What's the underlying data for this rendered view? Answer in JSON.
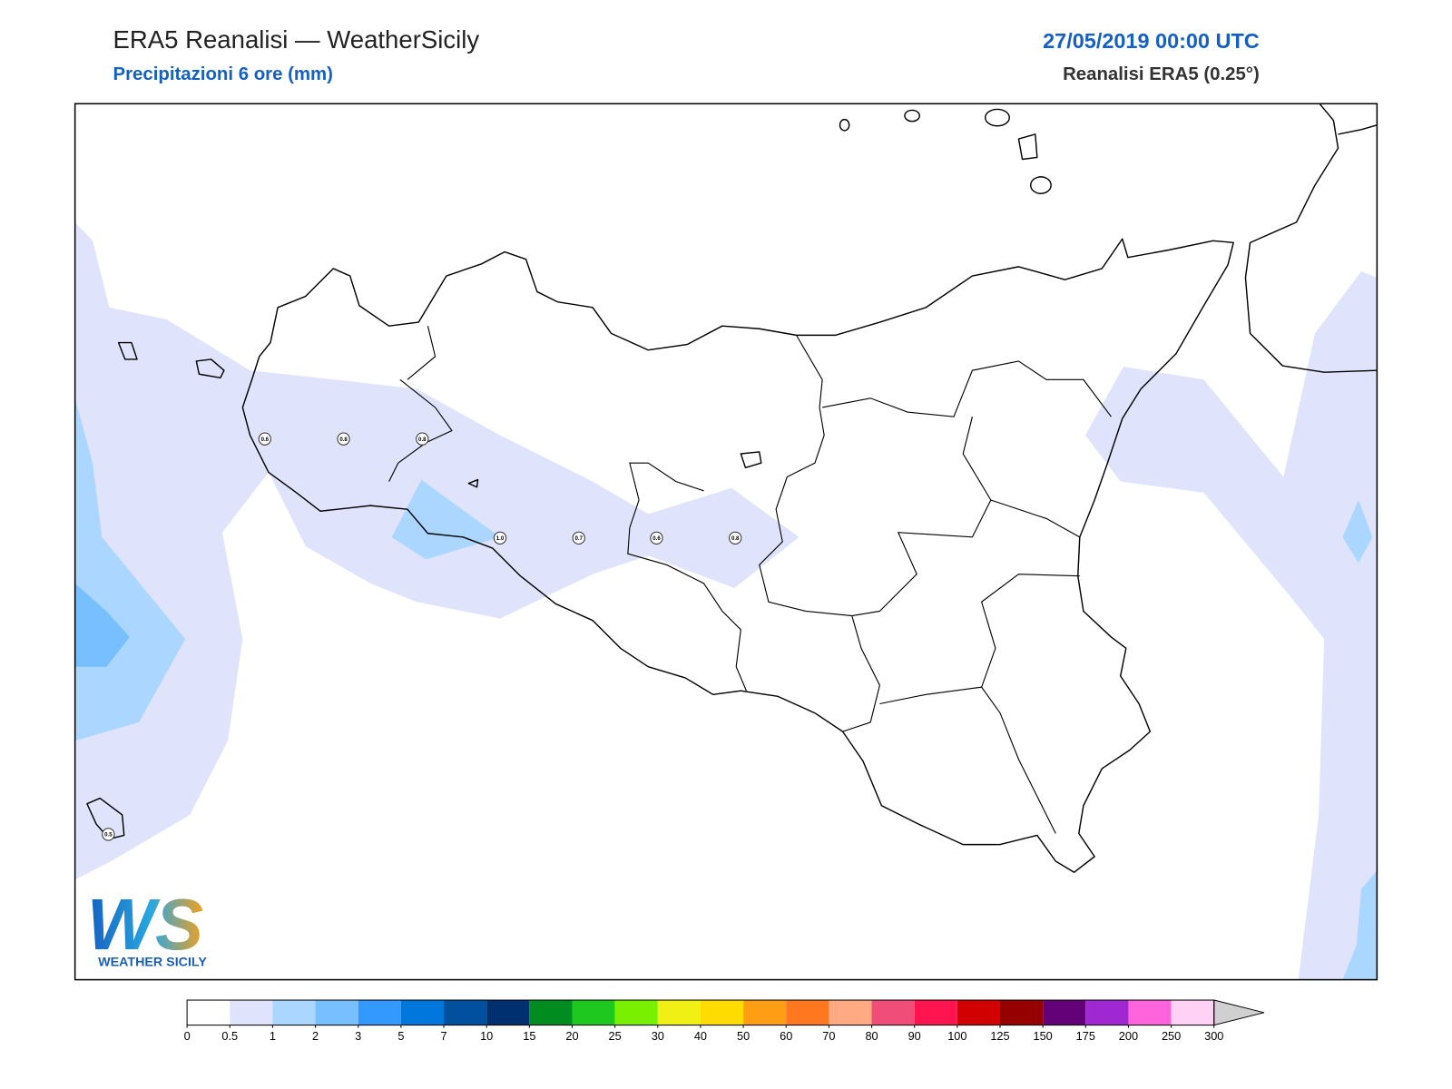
{
  "header": {
    "title": "ERA5 Reanalisi — WeatherSicily",
    "subtitle": "Precipitazioni 6 ore (mm)",
    "datetime": "27/05/2019 00:00 UTC",
    "model": "Reanalisi ERA5 (0.25°)"
  },
  "map": {
    "points": [
      0.6,
      0.8,
      0.8,
      {
        "value": 1,
        "label": "1.0"
      },
      0.7,
      0.6,
      0.8,
      0.5
    ]
  },
  "logo": {
    "mark": "WS",
    "text": "WEATHER SICILY"
  },
  "colorbar": {
    "levels": [
      0,
      0.5,
      1,
      2,
      3,
      5,
      7,
      10,
      15,
      20,
      25,
      30,
      40,
      50,
      60,
      70,
      80,
      90,
      100,
      125,
      150,
      175,
      200,
      250,
      300
    ],
    "colors": [
      "#ffffff",
      "#dfe3fc",
      "#aad6ff",
      "#78bfff",
      "#3399ff",
      "#0077dd",
      "#0050a0",
      "#003070",
      "#008c1e",
      "#1ec81e",
      "#78f000",
      "#f0f014",
      "#ffdc00",
      "#ff9e14",
      "#ff7820",
      "#ffaa82",
      "#f04e78",
      "#ff1450",
      "#d20000",
      "#960000",
      "#640078",
      "#a028d2",
      "#ff64dc",
      "#ffd2f5"
    ],
    "extend_color": "#d0d0d0"
  }
}
